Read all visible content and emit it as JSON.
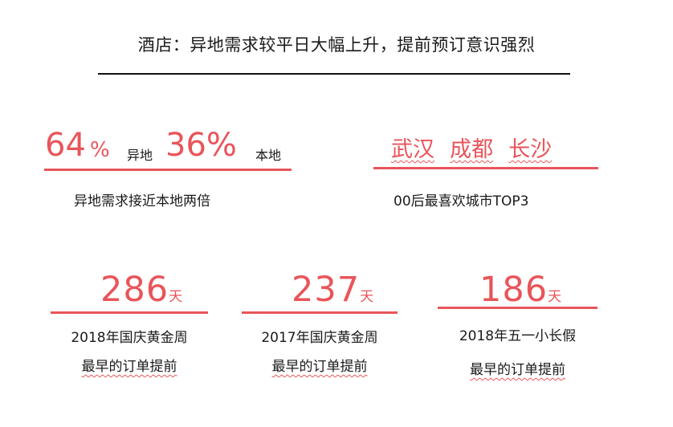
{
  "title": "酒店：异地需求较平日大幅上升，提前预订意识强烈",
  "stats": {
    "nonlocal_value": "64",
    "nonlocal_pct": "%",
    "nonlocal_label": "异地",
    "local_value": "36%",
    "local_label": "本地",
    "ratio_caption": "异地需求接近本地两倍"
  },
  "cities": {
    "items": [
      "武汉",
      "成都",
      "长沙"
    ],
    "caption": "00后最喜欢城市TOP3"
  },
  "advance_booking": [
    {
      "value": "286",
      "unit": "天",
      "line1": "2018年国庆黄金周",
      "line2": "最早的订单提前"
    },
    {
      "value": "237",
      "unit": "天",
      "line1": "2017年国庆黄金周",
      "line2": "最早的订单提前"
    },
    {
      "value": "186",
      "unit": "天",
      "line1": "2018年五一小长假",
      "line2": "最早的订单提前"
    }
  ],
  "colors": {
    "accent": "#e8555a",
    "text": "#1a1a1a"
  }
}
